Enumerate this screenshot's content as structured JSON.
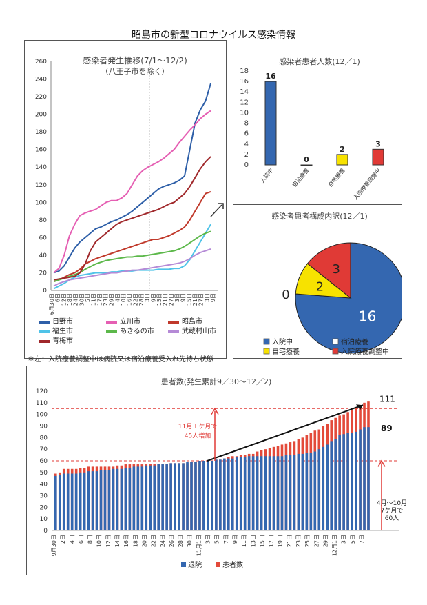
{
  "page": {
    "title": "昭島市の新型コロナウイルス感染情報"
  },
  "line_panel": {
    "title": "感染者発生推移(7/1～12/2)",
    "subtitle": "（八王子市を除く）"
  },
  "bar_panel": {
    "title": "感染者患者人数(12／1)"
  },
  "pie_panel": {
    "title": "感染者患者構成内訳(12／1)"
  },
  "note": "＊左：入院療養調整中は病院又は宿泊療養受入れ先待ち状態",
  "cumulative_panel": {
    "title": "患者数(発生累計9／30～12／2)",
    "annotation_month": "11月１ケ月で\n45人増加",
    "annotation_period": "4月～10月\n7ケ月で\n60人",
    "label_top": "111",
    "label_discharged": "89"
  },
  "colors": {
    "hino": "#2e5fa8",
    "tachikawa": "#e55fb3",
    "akishima": "#c0392b",
    "fussa": "#4fc3e8",
    "akiruno": "#5cb84a",
    "musashimurayama": "#b58ad6",
    "ome": "#a0282b",
    "hospital": "#3467b0",
    "hotel": "#ffffff",
    "home": "#f7e200",
    "waiting": "#e03a36",
    "discharged": "#3467b0",
    "patients": "#e34a3a"
  },
  "chart_data": [
    {
      "type": "line",
      "title": "感染者発生推移(7/1～12/2)",
      "subtitle": "（八王子市を除く）",
      "ylim": [
        0,
        260
      ],
      "yticks": [
        0,
        20,
        40,
        60,
        80,
        100,
        120,
        140,
        160,
        180,
        200,
        220,
        240,
        260
      ],
      "xticks": [
        "6月30日",
        "6日",
        "12日",
        "18日",
        "24日",
        "30日",
        "5日",
        "11日",
        "17日",
        "23日",
        "29日",
        "4日",
        "10日",
        "16日",
        "22日",
        "28日",
        "3日",
        "9日",
        "15日",
        "21日",
        "27日",
        "3日",
        "9日",
        "15日",
        "21日",
        "27日",
        "3日",
        "9日"
      ],
      "grid": false,
      "legend": "bottom",
      "marker_label_index": 16,
      "series": [
        {
          "name": "日野市",
          "color_key": "hino",
          "values": [
            20,
            22,
            28,
            38,
            48,
            55,
            60,
            65,
            70,
            72,
            75,
            78,
            80,
            83,
            86,
            90,
            95,
            100,
            105,
            110,
            115,
            118,
            120,
            122,
            125,
            130,
            160,
            190,
            205,
            215,
            235
          ]
        },
        {
          "name": "立川市",
          "color_key": "tachikawa",
          "values": [
            20,
            25,
            40,
            62,
            75,
            85,
            88,
            90,
            92,
            96,
            100,
            102,
            102,
            105,
            110,
            120,
            130,
            136,
            140,
            143,
            146,
            150,
            155,
            160,
            168,
            175,
            182,
            188,
            195,
            200,
            204
          ]
        },
        {
          "name": "昭島市",
          "color_key": "akishima",
          "values": [
            10,
            12,
            15,
            18,
            20,
            24,
            30,
            33,
            36,
            38,
            40,
            42,
            44,
            46,
            48,
            50,
            52,
            54,
            56,
            58,
            58,
            60,
            62,
            65,
            68,
            72,
            80,
            90,
            100,
            110,
            112
          ]
        },
        {
          "name": "福生市",
          "color_key": "fussa",
          "values": [
            2,
            5,
            8,
            12,
            15,
            17,
            18,
            19,
            20,
            20,
            20,
            21,
            21,
            22,
            22,
            22,
            23,
            23,
            23,
            23,
            24,
            24,
            24,
            25,
            25,
            28,
            35,
            45,
            55,
            65,
            75
          ]
        },
        {
          "name": "あきるの市",
          "color_key": "akiruno",
          "values": [
            10,
            12,
            14,
            16,
            18,
            20,
            24,
            27,
            30,
            32,
            34,
            35,
            36,
            37,
            38,
            38,
            39,
            39,
            40,
            41,
            42,
            43,
            44,
            45,
            47,
            50,
            54,
            58,
            62,
            65,
            67
          ]
        },
        {
          "name": "武蔵村山市",
          "color_key": "musashimurayama",
          "values": [
            5,
            8,
            10,
            12,
            13,
            14,
            15,
            16,
            17,
            18,
            19,
            20,
            20,
            21,
            22,
            23,
            23,
            24,
            25,
            26,
            27,
            28,
            29,
            30,
            31,
            33,
            36,
            40,
            43,
            45,
            47
          ]
        },
        {
          "name": "青梅市",
          "color_key": "ome",
          "values": [
            12,
            13,
            14,
            15,
            16,
            20,
            30,
            45,
            55,
            60,
            65,
            70,
            75,
            78,
            80,
            82,
            84,
            86,
            88,
            90,
            92,
            95,
            98,
            100,
            105,
            110,
            118,
            128,
            138,
            146,
            152
          ]
        }
      ]
    },
    {
      "type": "bar",
      "title": "感染者患者人数(12／1)",
      "categories": [
        "入院中",
        "宿泊療養",
        "自宅療養",
        "入院療養調整中"
      ],
      "values": [
        16,
        0,
        2,
        3
      ],
      "ylim": [
        0,
        18
      ],
      "yticks": [
        0,
        2,
        4,
        6,
        8,
        10,
        12,
        14,
        16,
        18
      ],
      "color_keys": [
        "hospital",
        "hotel",
        "home",
        "waiting"
      ]
    },
    {
      "type": "pie",
      "title": "感染者患者構成内訳(12／1)",
      "categories": [
        "入院中",
        "宿泊療養",
        "自宅療養",
        "入院療養調整中"
      ],
      "values": [
        16,
        0,
        2,
        3
      ],
      "color_keys": [
        "hospital",
        "hotel",
        "home",
        "waiting"
      ],
      "legend": "bottom"
    },
    {
      "type": "bar",
      "title": "患者数(発生累計9／30～12／2)",
      "ylim": [
        0,
        120
      ],
      "yticks": [
        0,
        10,
        20,
        30,
        40,
        50,
        60,
        70,
        80,
        90,
        100,
        110,
        120
      ],
      "reference_lines": [
        60,
        105
      ],
      "xticks": [
        "9月30日",
        "2日",
        "4日",
        "6日",
        "8日",
        "10日",
        "12日",
        "14日",
        "16日",
        "18日",
        "20日",
        "22日",
        "24日",
        "26日",
        "28日",
        "30日",
        "11月1日",
        "3日",
        "5日",
        "7日",
        "9日",
        "11日",
        "13日",
        "15日",
        "17日",
        "19日",
        "21日",
        "23日",
        "25日",
        "27日",
        "29日",
        "12月1日",
        "3日",
        "5日",
        "7日"
      ],
      "legend": "bottom",
      "series": [
        {
          "name": "退院",
          "color_key": "discharged",
          "values": [
            47,
            48,
            49,
            49,
            49,
            49,
            50,
            50,
            51,
            51,
            51,
            52,
            52,
            52,
            53,
            53,
            53,
            54,
            54,
            55,
            55,
            55,
            56,
            56,
            56,
            57,
            57,
            57,
            58,
            58,
            58,
            58,
            59,
            59,
            59,
            60,
            60,
            60,
            60,
            61,
            61,
            62,
            62,
            62,
            63,
            63,
            63,
            64,
            64,
            64,
            64,
            64,
            64,
            64,
            64,
            64,
            65,
            65,
            65,
            66,
            66,
            67,
            67,
            68,
            70,
            72,
            74,
            77,
            79,
            82,
            83,
            84,
            84,
            85,
            87,
            89,
            89
          ]
        },
        {
          "name": "患者数",
          "color_key": "patients",
          "values": [
            49,
            50,
            53,
            53,
            53,
            53,
            54,
            54,
            55,
            55,
            55,
            55,
            55,
            55,
            55,
            56,
            56,
            57,
            57,
            57,
            57,
            57,
            57,
            57,
            57,
            57,
            57,
            57,
            58,
            58,
            58,
            58,
            58,
            59,
            59,
            60,
            60,
            60,
            60,
            61,
            61,
            62,
            63,
            64,
            64,
            65,
            65,
            66,
            66,
            68,
            69,
            70,
            71,
            72,
            73,
            74,
            75,
            76,
            77,
            79,
            80,
            82,
            84,
            86,
            87,
            90,
            92,
            95,
            97,
            99,
            100,
            102,
            104,
            106,
            108,
            110,
            111
          ]
        }
      ]
    }
  ]
}
